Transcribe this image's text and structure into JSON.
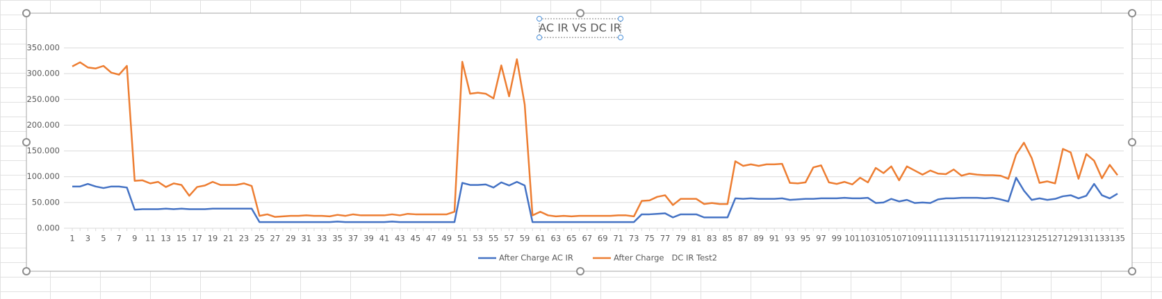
{
  "chart_data": {
    "type": "line",
    "title": "AC IR VS DC IR",
    "categories": [
      1,
      null,
      3,
      null,
      5,
      null,
      7,
      null,
      9,
      null,
      11,
      null,
      13,
      null,
      15,
      null,
      17,
      null,
      19,
      null,
      21,
      null,
      23,
      null,
      25,
      null,
      27,
      null,
      29,
      null,
      31,
      null,
      33,
      null,
      35,
      null,
      37,
      null,
      39,
      null,
      41,
      null,
      43,
      null,
      45,
      null,
      47,
      null,
      49,
      null,
      51,
      null,
      53,
      null,
      55,
      null,
      57,
      null,
      59,
      null,
      61,
      null,
      63,
      null,
      65,
      null,
      67,
      null,
      69,
      null,
      71,
      null,
      73,
      null,
      75,
      null,
      77,
      null,
      79,
      null,
      81,
      null,
      83,
      null,
      85,
      null,
      87,
      null,
      89,
      null,
      91,
      null,
      93,
      null,
      95,
      null,
      97,
      null,
      99,
      null,
      101,
      null,
      103,
      null,
      105,
      null,
      107,
      null,
      109,
      null,
      111,
      null,
      113,
      null,
      115,
      null,
      117,
      null,
      119,
      null,
      121,
      null,
      123,
      null,
      125,
      null,
      127,
      null,
      129,
      null,
      131,
      null,
      133,
      null,
      135
    ],
    "series": [
      {
        "name": "After Charge AC IR",
        "color": "#4472c4",
        "values": [
          81,
          81,
          86,
          81,
          78,
          81,
          81,
          79,
          36,
          37,
          37,
          37,
          38,
          37,
          38,
          37,
          37,
          37,
          38,
          38,
          38,
          38,
          38,
          38,
          12,
          12,
          12,
          12,
          12,
          12,
          12,
          12,
          12,
          12,
          13,
          12,
          12,
          12,
          12,
          12,
          12,
          13,
          12,
          12,
          12,
          12,
          12,
          12,
          12,
          12,
          88,
          84,
          84,
          85,
          79,
          89,
          83,
          90,
          83,
          12,
          12,
          12,
          12,
          12,
          12,
          12,
          12,
          12,
          12,
          12,
          12,
          12,
          12,
          27,
          27,
          28,
          29,
          21,
          27,
          27,
          27,
          21,
          21,
          21,
          21,
          58,
          57,
          58,
          57,
          57,
          57,
          58,
          55,
          56,
          57,
          57,
          58,
          58,
          58,
          59,
          58,
          58,
          59,
          49,
          50,
          57,
          52,
          55,
          49,
          50,
          49,
          56,
          58,
          58,
          59,
          59,
          59,
          58,
          59,
          56,
          52,
          98,
          73,
          55,
          58,
          55,
          57,
          62,
          64,
          58,
          63,
          86,
          64,
          58,
          67
        ]
      },
      {
        "name": "After Charge   DC IR Test2",
        "color": "#ed7d31",
        "values": [
          314,
          322,
          312,
          310,
          315,
          302,
          298,
          315,
          92,
          93,
          87,
          90,
          80,
          87,
          84,
          63,
          80,
          83,
          90,
          84,
          84,
          84,
          87,
          82,
          24,
          27,
          22,
          23,
          24,
          24,
          25,
          24,
          24,
          23,
          26,
          24,
          27,
          25,
          25,
          25,
          25,
          27,
          25,
          28,
          27,
          27,
          27,
          27,
          27,
          32,
          323,
          261,
          263,
          261,
          252,
          316,
          256,
          328,
          240,
          25,
          32,
          25,
          23,
          24,
          23,
          24,
          24,
          24,
          24,
          24,
          25,
          25,
          23,
          53,
          54,
          61,
          64,
          45,
          57,
          57,
          57,
          47,
          49,
          47,
          47,
          130,
          121,
          124,
          121,
          124,
          124,
          125,
          88,
          87,
          89,
          118,
          122,
          89,
          86,
          90,
          85,
          98,
          89,
          117,
          107,
          120,
          93,
          120,
          112,
          104,
          112,
          106,
          105,
          114,
          102,
          106,
          104,
          103,
          103,
          102,
          96,
          143,
          166,
          136,
          88,
          91,
          87,
          154,
          147,
          96,
          144,
          131,
          97,
          123,
          103
        ]
      }
    ],
    "ylim": [
      0,
      350
    ],
    "yticks": [
      {
        "value": 0,
        "label": "0.000"
      },
      {
        "value": 50,
        "label": "50.000"
      },
      {
        "value": 100,
        "label": "100.000"
      },
      {
        "value": 150,
        "label": "150.000"
      },
      {
        "value": 200,
        "label": "200.000"
      },
      {
        "value": 250,
        "label": "250.000"
      },
      {
        "value": 300,
        "label": "300.000"
      },
      {
        "value": 350,
        "label": "350.000"
      }
    ],
    "grid": true,
    "legend": "bottom"
  }
}
